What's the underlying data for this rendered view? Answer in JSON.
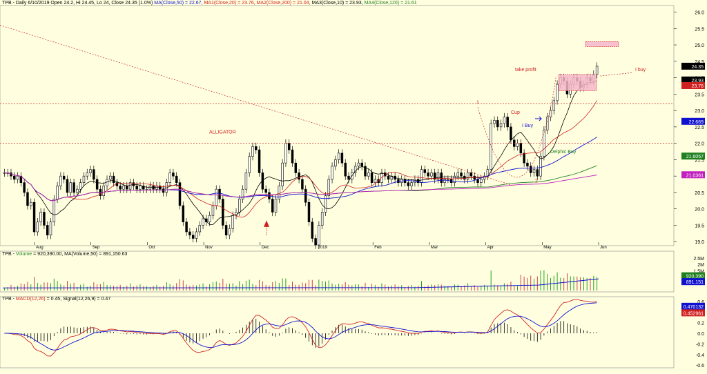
{
  "colors": {
    "bg": "#ffffe0",
    "candle_up": "#000000",
    "ma50": "#1010d0",
    "ma20": "#d02020",
    "ma200": "#208020",
    "ma10": "#000000",
    "ma120": "#c020c0",
    "volume": "#d04040",
    "macd": "#d02020",
    "signal": "#1010d0"
  },
  "header": {
    "price": [
      {
        "text": "TPB - Daily 6/10/2019 Open 24.2, Hi 24.45, Lo 24, Close 24.35 (1.0%) ",
        "color": "#000000"
      },
      {
        "text": "MA(Close,50) = 22.67, ",
        "color": "#1010d0"
      },
      {
        "text": "MA1(Close,20) = 23.76, ",
        "color": "#d02020"
      },
      {
        "text": "MA2(Close,200) = 21.04, ",
        "color": "#d02020"
      },
      {
        "text": "MA3(Close,10) = 23.93, ",
        "color": "#000000"
      },
      {
        "text": "MA4(Close,120) = 21.61",
        "color": "#208020"
      }
    ],
    "volume": [
      {
        "text": "TPB - ",
        "color": "#000000"
      },
      {
        "text": "Volume",
        "color": "#208020"
      },
      {
        "text": " = 920,390.00, ",
        "color": "#000000"
      },
      {
        "text": "MA(Volume,50) = 891,150.63",
        "color": "#000000"
      }
    ],
    "macd": [
      {
        "text": "TPB - ",
        "color": "#000000"
      },
      {
        "text": "MACD(12,26)",
        "color": "#d02020"
      },
      {
        "text": " = 0.45, ",
        "color": "#000000"
      },
      {
        "text": "Signal(12,26,9) = 0.47",
        "color": "#000000"
      }
    ]
  },
  "chart_data": [
    {
      "type": "candlestick",
      "title": "TPB - Daily",
      "x_labels": [
        "Aug",
        "Sep",
        "Oct",
        "Nov",
        "Dec",
        "2019",
        "Feb",
        "Mar",
        "Apr",
        "May",
        "Jun"
      ],
      "y_ticks": [
        "26.0",
        "25.5",
        "25.0",
        "24.5",
        "24.0",
        "23.5",
        "23.0",
        "22.5",
        "22.0",
        "21.5",
        "21.0",
        "20.5",
        "20.0",
        "19.5",
        "19.0"
      ],
      "ylim": [
        18.9,
        26.2
      ],
      "last_close": 24.35,
      "closes": [
        21.1,
        21.1,
        21.0,
        20.9,
        21.0,
        20.8,
        20.5,
        20.1,
        20.2,
        19.3,
        19.6,
        19.9,
        19.5,
        19.2,
        19.6,
        20.3,
        20.7,
        21.0,
        20.9,
        20.5,
        20.8,
        20.5,
        20.6,
        20.8,
        21.0,
        21.1,
        21.2,
        20.9,
        20.6,
        20.4,
        20.7,
        20.9,
        21.0,
        20.8,
        20.7,
        20.6,
        20.7,
        20.6,
        20.8,
        20.7,
        20.6,
        20.7,
        20.6,
        20.6,
        20.7,
        20.6,
        20.7,
        20.6,
        20.5,
        20.8,
        21.1,
        21.0,
        20.8,
        20.1,
        19.6,
        19.3,
        19.2,
        19.1,
        19.3,
        19.5,
        19.7,
        19.6,
        19.8,
        20.1,
        20.6,
        20.3,
        19.5,
        19.2,
        19.4,
        19.8,
        19.9,
        20.3,
        20.6,
        21.1,
        21.6,
        21.9,
        21.8,
        21.1,
        20.6,
        20.5,
        20.3,
        19.9,
        20.3,
        20.7,
        21.4,
        22.0,
        21.8,
        21.4,
        21.1,
        20.9,
        20.6,
        20.2,
        19.6,
        19.1,
        18.9,
        19.5,
        19.9,
        20.4,
        20.9,
        21.3,
        21.5,
        21.7,
        21.4,
        21.0,
        20.9,
        21.1,
        21.3,
        21.4,
        21.3,
        21.0,
        21.1,
        20.8,
        20.9,
        20.8,
        21.1,
        21.0,
        20.9,
        21.0,
        20.9,
        20.8,
        20.9,
        20.8,
        20.7,
        20.8,
        20.9,
        20.8,
        21.2,
        21.1,
        21.0,
        21.1,
        20.9,
        21.1,
        20.8,
        20.9,
        20.9,
        20.8,
        21.0,
        21.1,
        21.0,
        20.9,
        21.1,
        21.0,
        20.9,
        20.8,
        20.9,
        21.0,
        21.2,
        22.6,
        22.7,
        22.5,
        22.6,
        22.8,
        22.5,
        22.1,
        21.9,
        22.0,
        21.7,
        21.4,
        21.3,
        21.1,
        21.2,
        21.0,
        21.6,
        22.4,
        22.8,
        23.0,
        23.3,
        23.8,
        24.0,
        23.9,
        23.5,
        23.8,
        24.0,
        23.9,
        23.7,
        23.8,
        24.0,
        23.9,
        24.1,
        24.35
      ],
      "ma_series": [
        {
          "name": "MA(Close,50)",
          "value": 22.67
        },
        {
          "name": "MA1(Close,20)",
          "value": 23.76
        },
        {
          "name": "MA2(Close,200)",
          "value": 21.04
        },
        {
          "name": "MA3(Close,10)",
          "value": 23.93
        },
        {
          "name": "MA4(Close,120)",
          "value": 21.61
        }
      ],
      "value_tags": [
        {
          "value": "24.35",
          "price": 24.35,
          "color": "#000000"
        },
        {
          "value": "23.93",
          "price": 23.93,
          "color": "#000000"
        },
        {
          "value": "23.76",
          "price": 23.76,
          "color": "#d02020"
        },
        {
          "value": "22.669",
          "price": 22.67,
          "color": "#1010d0"
        },
        {
          "value": "21.6057",
          "price": 21.61,
          "color": "#208020"
        },
        {
          "value": "21.0361",
          "price": 21.04,
          "color": "#c020c0"
        }
      ],
      "horizontal_levels": [
        23.2,
        22.0
      ],
      "annotations": [
        "ALLIGATOR",
        "take profit",
        "I buy",
        "Cup",
        "I Buy",
        "Delphic Buy",
        "1",
        "2"
      ]
    },
    {
      "type": "bar",
      "title": "Volume",
      "y_ticks": [
        "2.5M",
        "2M",
        "1.5M",
        "1M"
      ],
      "ylim": [
        0,
        2700000
      ],
      "last": 920390,
      "ma50": 891150.63,
      "value_tags": [
        {
          "value": "920,390",
          "color": "#208020"
        },
        {
          "value": "891,151",
          "color": "#1010d0"
        }
      ]
    },
    {
      "type": "line",
      "title": "MACD(12,26)",
      "y_ticks": [
        "0.6",
        "0.4",
        "0.2",
        "0.0",
        "-0.2",
        "-0.4",
        "-0.6"
      ],
      "ylim": [
        -0.65,
        0.65
      ],
      "macd": 0.45,
      "signal": 0.47,
      "value_tags": [
        {
          "value": "0.470132",
          "color": "#1010d0"
        },
        {
          "value": "0.452961",
          "color": "#d02020"
        }
      ]
    }
  ]
}
